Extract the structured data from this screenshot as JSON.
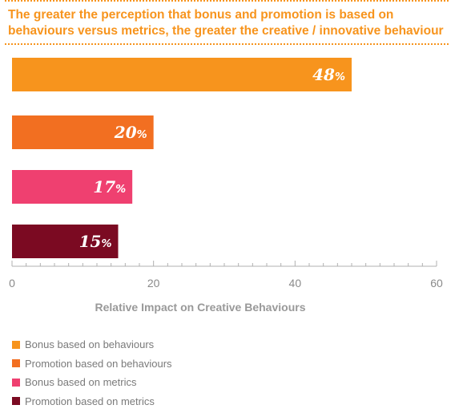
{
  "title": "The greater the perception that bonus and promotion is based on behaviours versus metrics, the greater the creative / innovative behaviour",
  "chart_data": {
    "type": "bar",
    "orientation": "horizontal",
    "title": "The greater the perception that bonus and promotion is based on behaviours versus metrics, the greater the creative / innovative behaviour",
    "xlabel": "Relative Impact on Creative Behaviours",
    "ylabel": "",
    "xlim": [
      0,
      60
    ],
    "xticks": [
      0,
      20,
      40,
      60
    ],
    "grid": false,
    "legend_position": "bottom-left",
    "series": [
      {
        "name": "Bonus based on behaviours",
        "value": 48,
        "label": "48",
        "unit": "%",
        "color": "#f7941d"
      },
      {
        "name": "Promotion based on behaviours",
        "value": 20,
        "label": "20",
        "unit": "%",
        "color": "#f26f21"
      },
      {
        "name": "Bonus based on metrics",
        "value": 17,
        "label": "17",
        "unit": "%",
        "color": "#ef4070"
      },
      {
        "name": "Promotion based on metrics",
        "value": 15,
        "label": "15",
        "unit": "%",
        "color": "#7b0a22"
      }
    ]
  }
}
